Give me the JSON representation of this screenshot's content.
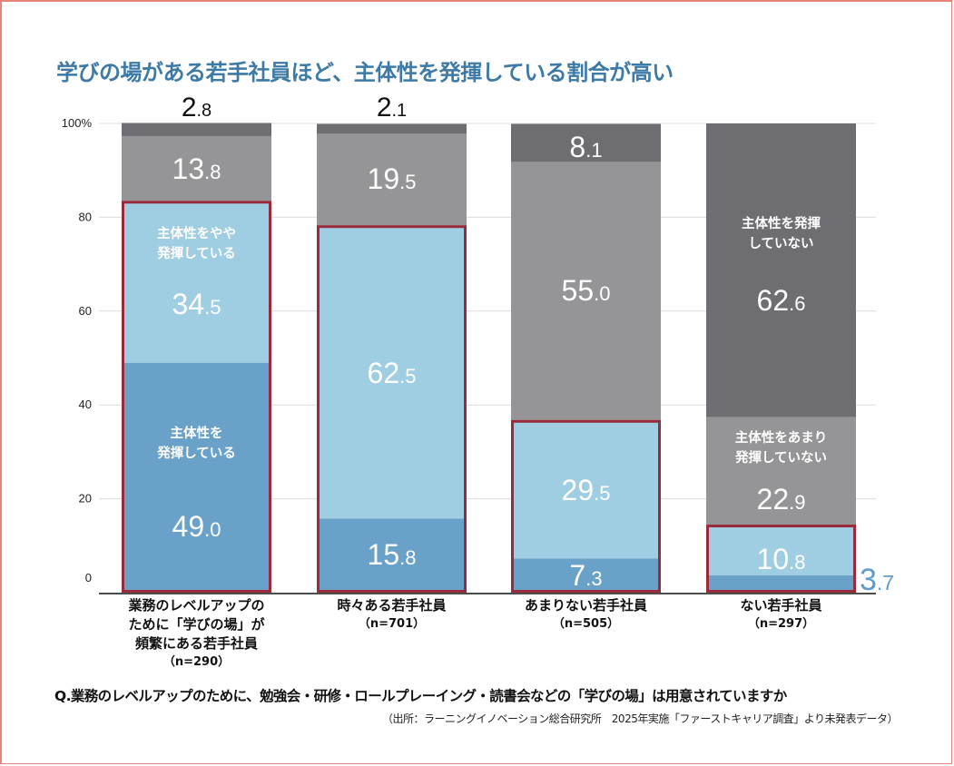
{
  "title": "学びの場がある若手社員ほど、主体性を発揮している割合が高い",
  "question": "Q.業務のレベルアップのために、勉強会・研修・ロールプレーイング・読書会などの「学びの場」は用意されていますか",
  "source": "（出所：ラーニングイノベーション総合研究所　2025年実施「ファーストキャリア調査」より未発表データ）",
  "chart_data": {
    "type": "bar",
    "stacked": true,
    "title": "学びの場がある若手社員ほど、主体性を発揮している割合が高い",
    "ylabel": "",
    "ylim": [
      0,
      100
    ],
    "yticks": [
      "0",
      "20",
      "40",
      "60",
      "80",
      "100%"
    ],
    "ytick_values": [
      0,
      20,
      40,
      60,
      80,
      100
    ],
    "grid": true,
    "categories": [
      {
        "label": [
          "業務のレベルアップの",
          "ために「学びの場」が",
          "頻繁にある若手社員"
        ],
        "n": "（n=290）"
      },
      {
        "label": [
          "時々ある若手社員"
        ],
        "n": "（n=701）"
      },
      {
        "label": [
          "あまりない若手社員"
        ],
        "n": "（n=505）"
      },
      {
        "label": [
          "ない若手社員"
        ],
        "n": "（n=297）"
      }
    ],
    "series": [
      {
        "name": "主体性を発揮している",
        "label_lines": [
          "主体性を",
          "発揮している"
        ],
        "color": "#69a1c9",
        "values": [
          49.0,
          15.8,
          7.3,
          3.7
        ],
        "display": [
          [
            "49",
            ".0"
          ],
          [
            "15",
            ".8"
          ],
          [
            "7",
            ".3"
          ],
          [
            "3",
            ".7"
          ]
        ]
      },
      {
        "name": "主体性をやや発揮している",
        "label_lines": [
          "主体性をやや",
          "発揮している"
        ],
        "color": "#9fcde2",
        "values": [
          34.5,
          62.5,
          29.5,
          10.8
        ],
        "display": [
          [
            "34",
            ".5"
          ],
          [
            "62",
            ".5"
          ],
          [
            "29",
            ".5"
          ],
          [
            "10",
            ".8"
          ]
        ]
      },
      {
        "name": "主体性をあまり発揮していない",
        "label_lines": [
          "主体性をあまり",
          "発揮していない"
        ],
        "color": "#959597",
        "values": [
          13.8,
          19.5,
          55.0,
          22.9
        ],
        "display": [
          [
            "13",
            ".8"
          ],
          [
            "19",
            ".5"
          ],
          [
            "55",
            ".0"
          ],
          [
            "22",
            ".9"
          ]
        ]
      },
      {
        "name": "主体性を発揮していない",
        "label_lines": [
          "主体性を発揮",
          "していない"
        ],
        "color": "#6e6d72",
        "values": [
          2.8,
          2.1,
          8.1,
          62.6
        ],
        "display": [
          [
            "2",
            ".8"
          ],
          [
            "2",
            ".1"
          ],
          [
            "8",
            ".1"
          ],
          [
            "62",
            ".6"
          ]
        ]
      }
    ],
    "highlight_color": "#9b2a3a",
    "highlight_note": "boxes around the top two positive segments"
  }
}
